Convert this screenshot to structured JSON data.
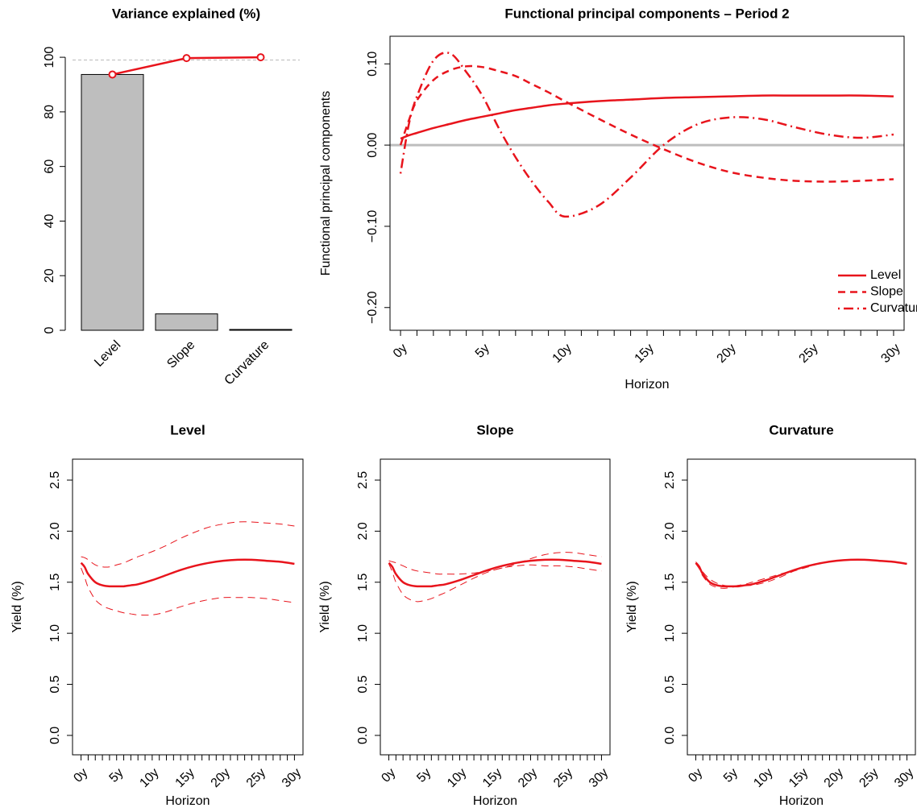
{
  "chart_data": [
    {
      "type": "bar",
      "title": "Variance explained (%)",
      "categories": [
        "Level",
        "Slope",
        "Curvature"
      ],
      "values": [
        93.7,
        6.0,
        0.3
      ],
      "color": "#bebebe",
      "line_values": [
        93.7,
        99.7,
        100
      ],
      "line_color": "#e8141c",
      "threshold": 99,
      "ylim": [
        0,
        107.7
      ],
      "yticks": [
        0,
        20,
        40,
        60,
        80,
        100
      ]
    },
    {
      "type": "line",
      "title": "Functional principal components – Period 2",
      "ylabel": "Functional principal components",
      "xlabel": "Horizon",
      "x": [
        0,
        0.5,
        1,
        2,
        3,
        4,
        5,
        6,
        7,
        8,
        9,
        10,
        12,
        14,
        16,
        18,
        20,
        22,
        24,
        26,
        28,
        30
      ],
      "xlim": [
        -0.64,
        30.64
      ],
      "xticks": [
        {
          "value": 0,
          "label": "0y"
        },
        {
          "value": 5,
          "label": "5y"
        },
        {
          "value": 10,
          "label": "10y"
        },
        {
          "value": 15,
          "label": "15y"
        },
        {
          "value": 20,
          "label": "20y"
        },
        {
          "value": 25,
          "label": "25y"
        },
        {
          "value": 30,
          "label": "30y"
        }
      ],
      "minor_xticks": [
        1,
        2,
        3,
        4,
        6,
        7,
        8,
        9,
        11,
        12,
        13,
        14,
        16,
        17,
        18,
        19,
        21,
        22,
        23,
        24,
        26,
        27,
        28,
        29
      ],
      "ylim": [
        -0.228,
        0.134
      ],
      "yticks": [
        {
          "value": -0.2,
          "label": "−0.20"
        },
        {
          "value": -0.1,
          "label": "−0.10"
        },
        {
          "value": 0,
          "label": "0.00"
        },
        {
          "value": 0.1,
          "label": "0.10"
        }
      ],
      "hline": 0,
      "hline_color": "#bebebe",
      "legend": "bottomright",
      "series": [
        {
          "name": "Level",
          "color": "#e8141c",
          "dash": "solid",
          "lwd": 2.5,
          "values": [
            0.008,
            0.012,
            0.015,
            0.021,
            0.026,
            0.031,
            0.035,
            0.039,
            0.043,
            0.046,
            0.049,
            0.051,
            0.054,
            0.056,
            0.058,
            0.059,
            0.06,
            0.061,
            0.061,
            0.061,
            0.061,
            0.06
          ]
        },
        {
          "name": "Slope",
          "color": "#e8141c",
          "dash": "dashed",
          "lwd": 2.5,
          "values": [
            0.0,
            0.03,
            0.055,
            0.08,
            0.092,
            0.097,
            0.096,
            0.091,
            0.085,
            0.075,
            0.065,
            0.054,
            0.033,
            0.013,
            -0.005,
            -0.021,
            -0.033,
            -0.04,
            -0.044,
            -0.045,
            -0.044,
            -0.042
          ]
        },
        {
          "name": "Curvature",
          "color": "#e8141c",
          "dash": "dotdash",
          "lwd": 2.5,
          "values": [
            -0.035,
            0.025,
            0.06,
            0.104,
            0.113,
            0.09,
            0.06,
            0.02,
            -0.015,
            -0.045,
            -0.07,
            -0.088,
            -0.075,
            -0.04,
            0.0,
            0.025,
            0.034,
            0.032,
            0.022,
            0.013,
            0.009,
            0.013
          ]
        }
      ]
    },
    {
      "type": "line",
      "title": "Level",
      "ylabel": "Yield (%)",
      "xlabel": "Horizon",
      "x": [
        0,
        0.5,
        1,
        2,
        3,
        4,
        5,
        6,
        7,
        8,
        10,
        12,
        14,
        16,
        18,
        20,
        22,
        24,
        26,
        28,
        30
      ],
      "xlim": [
        -1.2,
        31.2
      ],
      "xticks": [
        {
          "value": 0,
          "label": "0y"
        },
        {
          "value": 5,
          "label": "5y"
        },
        {
          "value": 10,
          "label": "10y"
        },
        {
          "value": 15,
          "label": "15y"
        },
        {
          "value": 20,
          "label": "20y"
        },
        {
          "value": 25,
          "label": "25y"
        },
        {
          "value": 30,
          "label": "30y"
        }
      ],
      "minor_xticks": [
        1,
        2,
        3,
        4,
        6,
        7,
        8,
        9,
        11,
        12,
        13,
        14,
        16,
        17,
        18,
        19,
        21,
        22,
        23,
        24,
        26,
        27,
        28,
        29
      ],
      "ylim": [
        -0.19,
        2.705
      ],
      "yticks": [
        {
          "value": 0,
          "label": "0.0"
        },
        0.5,
        {
          "value": 1,
          "label": "1.0"
        },
        1.5,
        {
          "value": 2,
          "label": "2.0"
        },
        2.5
      ],
      "series": [
        {
          "color": "#e8141c",
          "dash": "solid",
          "lwd": 2.5,
          "values": [
            1.69,
            1.65,
            1.58,
            1.5,
            1.47,
            1.46,
            1.46,
            1.46,
            1.47,
            1.48,
            1.52,
            1.57,
            1.62,
            1.66,
            1.69,
            1.71,
            1.72,
            1.72,
            1.71,
            1.7,
            1.68
          ]
        },
        {
          "color": "#e8141c",
          "dash": "dashed",
          "lwd": 1,
          "values": [
            1.75,
            1.74,
            1.72,
            1.67,
            1.65,
            1.65,
            1.67,
            1.69,
            1.72,
            1.75,
            1.8,
            1.86,
            1.93,
            1.99,
            2.04,
            2.07,
            2.09,
            2.09,
            2.08,
            2.07,
            2.05
          ]
        },
        {
          "color": "#e8141c",
          "dash": "dashed",
          "lwd": 1,
          "values": [
            1.64,
            1.55,
            1.45,
            1.33,
            1.27,
            1.24,
            1.22,
            1.2,
            1.19,
            1.18,
            1.18,
            1.21,
            1.26,
            1.3,
            1.33,
            1.35,
            1.35,
            1.35,
            1.34,
            1.32,
            1.3
          ]
        }
      ]
    },
    {
      "type": "line",
      "title": "Slope",
      "ylabel": "Yield (%)",
      "xlabel": "Horizon",
      "x": [
        0,
        0.5,
        1,
        2,
        3,
        4,
        5,
        6,
        7,
        8,
        10,
        12,
        14,
        16,
        18,
        20,
        22,
        24,
        26,
        28,
        30
      ],
      "xlim": [
        -1.2,
        31.2
      ],
      "xticks": [
        {
          "value": 0,
          "label": "0y"
        },
        {
          "value": 5,
          "label": "5y"
        },
        {
          "value": 10,
          "label": "10y"
        },
        {
          "value": 15,
          "label": "15y"
        },
        {
          "value": 20,
          "label": "20y"
        },
        {
          "value": 25,
          "label": "25y"
        },
        {
          "value": 30,
          "label": "30y"
        }
      ],
      "minor_xticks": [
        1,
        2,
        3,
        4,
        6,
        7,
        8,
        9,
        11,
        12,
        13,
        14,
        16,
        17,
        18,
        19,
        21,
        22,
        23,
        24,
        26,
        27,
        28,
        29
      ],
      "ylim": [
        -0.19,
        2.705
      ],
      "yticks": [
        {
          "value": 0,
          "label": "0.0"
        },
        0.5,
        {
          "value": 1,
          "label": "1.0"
        },
        1.5,
        {
          "value": 2,
          "label": "2.0"
        },
        2.5
      ],
      "series": [
        {
          "color": "#e8141c",
          "dash": "solid",
          "lwd": 2.5,
          "values": [
            1.69,
            1.65,
            1.58,
            1.5,
            1.47,
            1.46,
            1.46,
            1.46,
            1.47,
            1.48,
            1.52,
            1.57,
            1.62,
            1.66,
            1.69,
            1.71,
            1.72,
            1.72,
            1.71,
            1.7,
            1.68
          ]
        },
        {
          "color": "#e8141c",
          "dash": "dashed",
          "lwd": 1,
          "values": [
            1.71,
            1.7,
            1.69,
            1.66,
            1.63,
            1.61,
            1.6,
            1.59,
            1.58,
            1.58,
            1.58,
            1.59,
            1.61,
            1.64,
            1.68,
            1.73,
            1.77,
            1.79,
            1.79,
            1.77,
            1.75
          ]
        },
        {
          "color": "#e8141c",
          "dash": "dashed",
          "lwd": 1,
          "values": [
            1.68,
            1.6,
            1.5,
            1.38,
            1.33,
            1.31,
            1.32,
            1.34,
            1.37,
            1.4,
            1.47,
            1.54,
            1.6,
            1.64,
            1.66,
            1.67,
            1.66,
            1.66,
            1.65,
            1.63,
            1.61
          ]
        }
      ]
    },
    {
      "type": "line",
      "title": "Curvature",
      "ylabel": "Yield (%)",
      "xlabel": "Horizon",
      "x": [
        0,
        0.5,
        1,
        2,
        3,
        4,
        5,
        6,
        7,
        8,
        10,
        12,
        14,
        16,
        18,
        20,
        22,
        24,
        26,
        28,
        30
      ],
      "xlim": [
        -1.2,
        31.2
      ],
      "xticks": [
        {
          "value": 0,
          "label": "0y"
        },
        {
          "value": 5,
          "label": "5y"
        },
        {
          "value": 10,
          "label": "10y"
        },
        {
          "value": 15,
          "label": "15y"
        },
        {
          "value": 20,
          "label": "20y"
        },
        {
          "value": 25,
          "label": "25y"
        },
        {
          "value": 30,
          "label": "30y"
        }
      ],
      "minor_xticks": [
        1,
        2,
        3,
        4,
        6,
        7,
        8,
        9,
        11,
        12,
        13,
        14,
        16,
        17,
        18,
        19,
        21,
        22,
        23,
        24,
        26,
        27,
        28,
        29
      ],
      "ylim": [
        -0.19,
        2.705
      ],
      "yticks": [
        {
          "value": 0,
          "label": "0.0"
        },
        0.5,
        {
          "value": 1,
          "label": "1.0"
        },
        1.5,
        {
          "value": 2,
          "label": "2.0"
        },
        2.5
      ],
      "series": [
        {
          "color": "#e8141c",
          "dash": "solid",
          "lwd": 2.5,
          "values": [
            1.69,
            1.65,
            1.58,
            1.5,
            1.47,
            1.46,
            1.46,
            1.46,
            1.47,
            1.48,
            1.52,
            1.57,
            1.62,
            1.66,
            1.69,
            1.71,
            1.72,
            1.72,
            1.71,
            1.7,
            1.68
          ]
        },
        {
          "color": "#e8141c",
          "dash": "dashed",
          "lwd": 1,
          "values": [
            1.7,
            1.66,
            1.6,
            1.53,
            1.49,
            1.47,
            1.46,
            1.47,
            1.48,
            1.5,
            1.54,
            1.58,
            1.62,
            1.66,
            1.69,
            1.71,
            1.72,
            1.72,
            1.71,
            1.7,
            1.68
          ]
        },
        {
          "color": "#e8141c",
          "dash": "dashed",
          "lwd": 1,
          "values": [
            1.68,
            1.63,
            1.56,
            1.48,
            1.45,
            1.44,
            1.45,
            1.46,
            1.47,
            1.47,
            1.5,
            1.55,
            1.61,
            1.65,
            1.69,
            1.71,
            1.72,
            1.72,
            1.71,
            1.7,
            1.68
          ]
        }
      ]
    }
  ]
}
